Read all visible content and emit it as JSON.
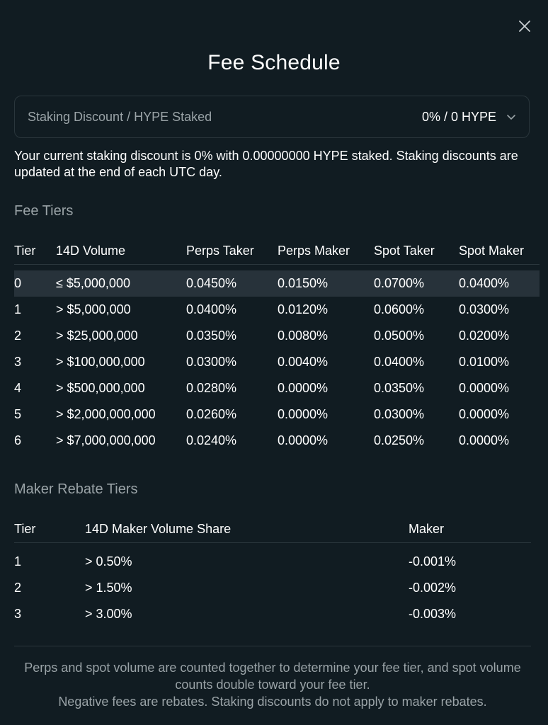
{
  "modal": {
    "title": "Fee Schedule",
    "close_icon": "close-icon"
  },
  "staking": {
    "label": "Staking Discount / HYPE Staked",
    "value": "0% / 0 HYPE",
    "description": "Your current staking discount is 0% with 0.00000000 HYPE staked. Staking discounts are updated at the end of each UTC day."
  },
  "fee_tiers": {
    "title": "Fee Tiers",
    "headers": [
      "Tier",
      "14D Volume",
      "Perps Taker",
      "Perps Maker",
      "Spot Taker",
      "Spot Maker"
    ],
    "rows": [
      [
        "0",
        "≤ $5,000,000",
        "0.0450%",
        "0.0150%",
        "0.0700%",
        "0.0400%"
      ],
      [
        "1",
        "> $5,000,000",
        "0.0400%",
        "0.0120%",
        "0.0600%",
        "0.0300%"
      ],
      [
        "2",
        "> $25,000,000",
        "0.0350%",
        "0.0080%",
        "0.0500%",
        "0.0200%"
      ],
      [
        "3",
        "> $100,000,000",
        "0.0300%",
        "0.0040%",
        "0.0400%",
        "0.0100%"
      ],
      [
        "4",
        "> $500,000,000",
        "0.0280%",
        "0.0000%",
        "0.0350%",
        "0.0000%"
      ],
      [
        "5",
        "> $2,000,000,000",
        "0.0260%",
        "0.0000%",
        "0.0300%",
        "0.0000%"
      ],
      [
        "6",
        "> $7,000,000,000",
        "0.0240%",
        "0.0000%",
        "0.0250%",
        "0.0000%"
      ]
    ],
    "highlighted_tier": "0"
  },
  "rebate_tiers": {
    "title": "Maker Rebate Tiers",
    "headers": [
      "Tier",
      "14D Maker Volume Share",
      "Maker"
    ],
    "rows": [
      [
        "1",
        "> 0.50%",
        "-0.001%"
      ],
      [
        "2",
        "> 1.50%",
        "-0.002%"
      ],
      [
        "3",
        "> 3.00%",
        "-0.003%"
      ]
    ]
  },
  "footer": {
    "line1": "Perps and spot volume are counted together to determine your fee tier, and spot volume counts double toward your fee tier.",
    "line2": "Negative fees are rebates. Staking discounts do not apply to maker rebates."
  },
  "colors": {
    "background": "#111c22",
    "border": "#2a363c",
    "muted_text": "#9aa3a7",
    "highlight_row": "#27323a"
  }
}
